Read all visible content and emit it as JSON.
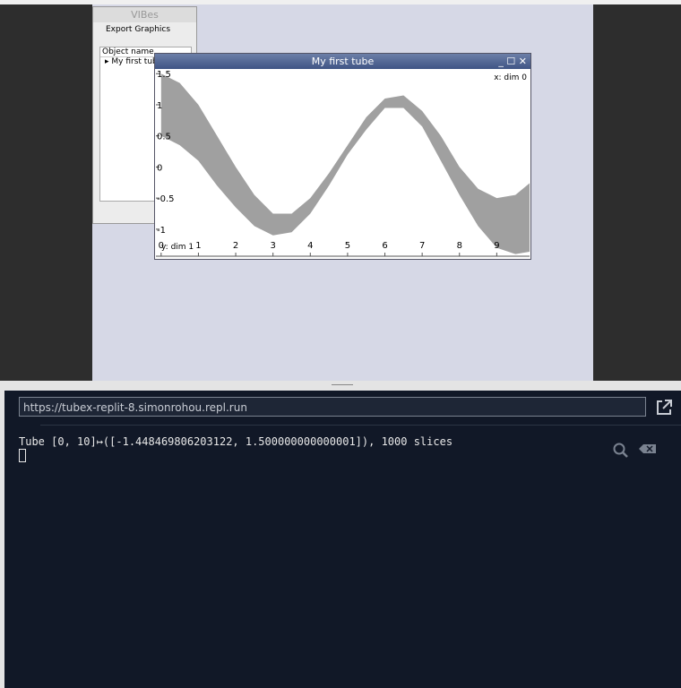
{
  "vibes_window": {
    "title": "VIBes",
    "menu": "Export Graphics",
    "list_header": "Object name",
    "items": [
      "My first tube"
    ]
  },
  "plot_window": {
    "title": "My first tube",
    "x_label": "x: dim 0",
    "y_label": "y: dim 1",
    "xlim": [
      -0.14,
      9.88
    ],
    "ylim": [
      -1.42,
      1.59
    ],
    "xticks": [
      0,
      1,
      2,
      3,
      4,
      5,
      6,
      7,
      8,
      9
    ],
    "yticks": [
      1.5,
      1,
      0.5,
      0,
      -0.5,
      -1
    ],
    "tube": {
      "color": "#a0a0a0",
      "x": [
        0,
        0.5,
        1,
        1.5,
        2,
        2.5,
        3,
        3.5,
        4,
        4.5,
        5,
        5.5,
        6,
        6.5,
        7,
        7.5,
        8,
        8.5,
        9,
        9.5,
        10
      ],
      "upper": [
        1.5,
        1.35,
        1.0,
        0.5,
        0.0,
        -0.45,
        -0.75,
        -0.75,
        -0.5,
        -0.1,
        0.35,
        0.8,
        1.1,
        1.15,
        0.9,
        0.5,
        0.0,
        -0.35,
        -0.5,
        -0.45,
        -0.2
      ],
      "lower": [
        0.5,
        0.35,
        0.1,
        -0.3,
        -0.65,
        -0.95,
        -1.1,
        -1.05,
        -0.75,
        -0.3,
        0.2,
        0.6,
        0.95,
        0.95,
        0.65,
        0.1,
        -0.45,
        -0.95,
        -1.3,
        -1.4,
        -1.35
      ]
    }
  },
  "console": {
    "url": "https://tubex-replit-8.simonrohou.repl.run",
    "output": "Tube [0, 10]↦([-1.448469806203122, 1.500000000000001]), 1000 slices"
  }
}
